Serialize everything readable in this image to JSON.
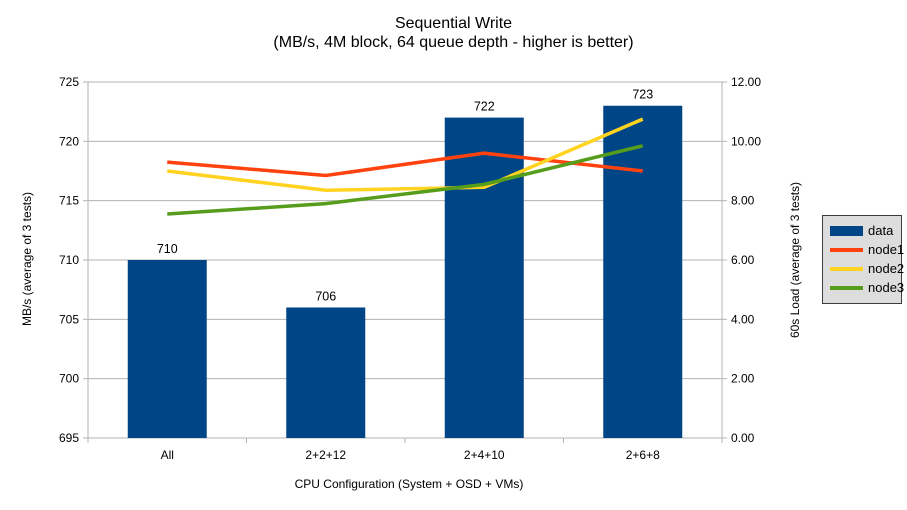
{
  "chart_data": {
    "type": "bar+line",
    "title": "Sequential Write",
    "subtitle": "(MB/s, 4M block, 64 queue depth - higher is better)",
    "xlabel": "CPU Configuration (System + OSD + VMs)",
    "ylabel_left": "MB/s (average of 3 tests)",
    "ylabel_right": "60s Load (average of 3 tests)",
    "categories": [
      "All",
      "2+2+12",
      "2+4+10",
      "2+6+8"
    ],
    "bar_series": {
      "name": "data",
      "axis": "left",
      "color": "#004586",
      "values": [
        710,
        706,
        722,
        723
      ],
      "data_labels": [
        "710",
        "706",
        "722",
        "723"
      ]
    },
    "line_series": [
      {
        "name": "node1",
        "axis": "right",
        "color": "#ff420e",
        "values": [
          9.3,
          8.85,
          9.6,
          9.0
        ]
      },
      {
        "name": "node2",
        "axis": "right",
        "color": "#ffd320",
        "values": [
          9.0,
          8.35,
          8.45,
          10.75
        ]
      },
      {
        "name": "node3",
        "axis": "right",
        "color": "#579d1c",
        "values": [
          7.55,
          7.9,
          8.55,
          9.85
        ]
      }
    ],
    "left_axis": {
      "min": 695,
      "max": 725,
      "step": 5,
      "decimals": 0
    },
    "right_axis": {
      "min": 0,
      "max": 12,
      "step": 2,
      "decimals": 2
    },
    "grid": "horizontal",
    "grid_color": "#b3b3b3",
    "legend_position": "right",
    "legend": [
      {
        "label": "data",
        "color": "#004586",
        "swatch": "bar"
      },
      {
        "label": "node1",
        "color": "#ff420e",
        "swatch": "line"
      },
      {
        "label": "node2",
        "color": "#ffd320",
        "swatch": "line"
      },
      {
        "label": "node3",
        "color": "#579d1c",
        "swatch": "line"
      }
    ]
  }
}
